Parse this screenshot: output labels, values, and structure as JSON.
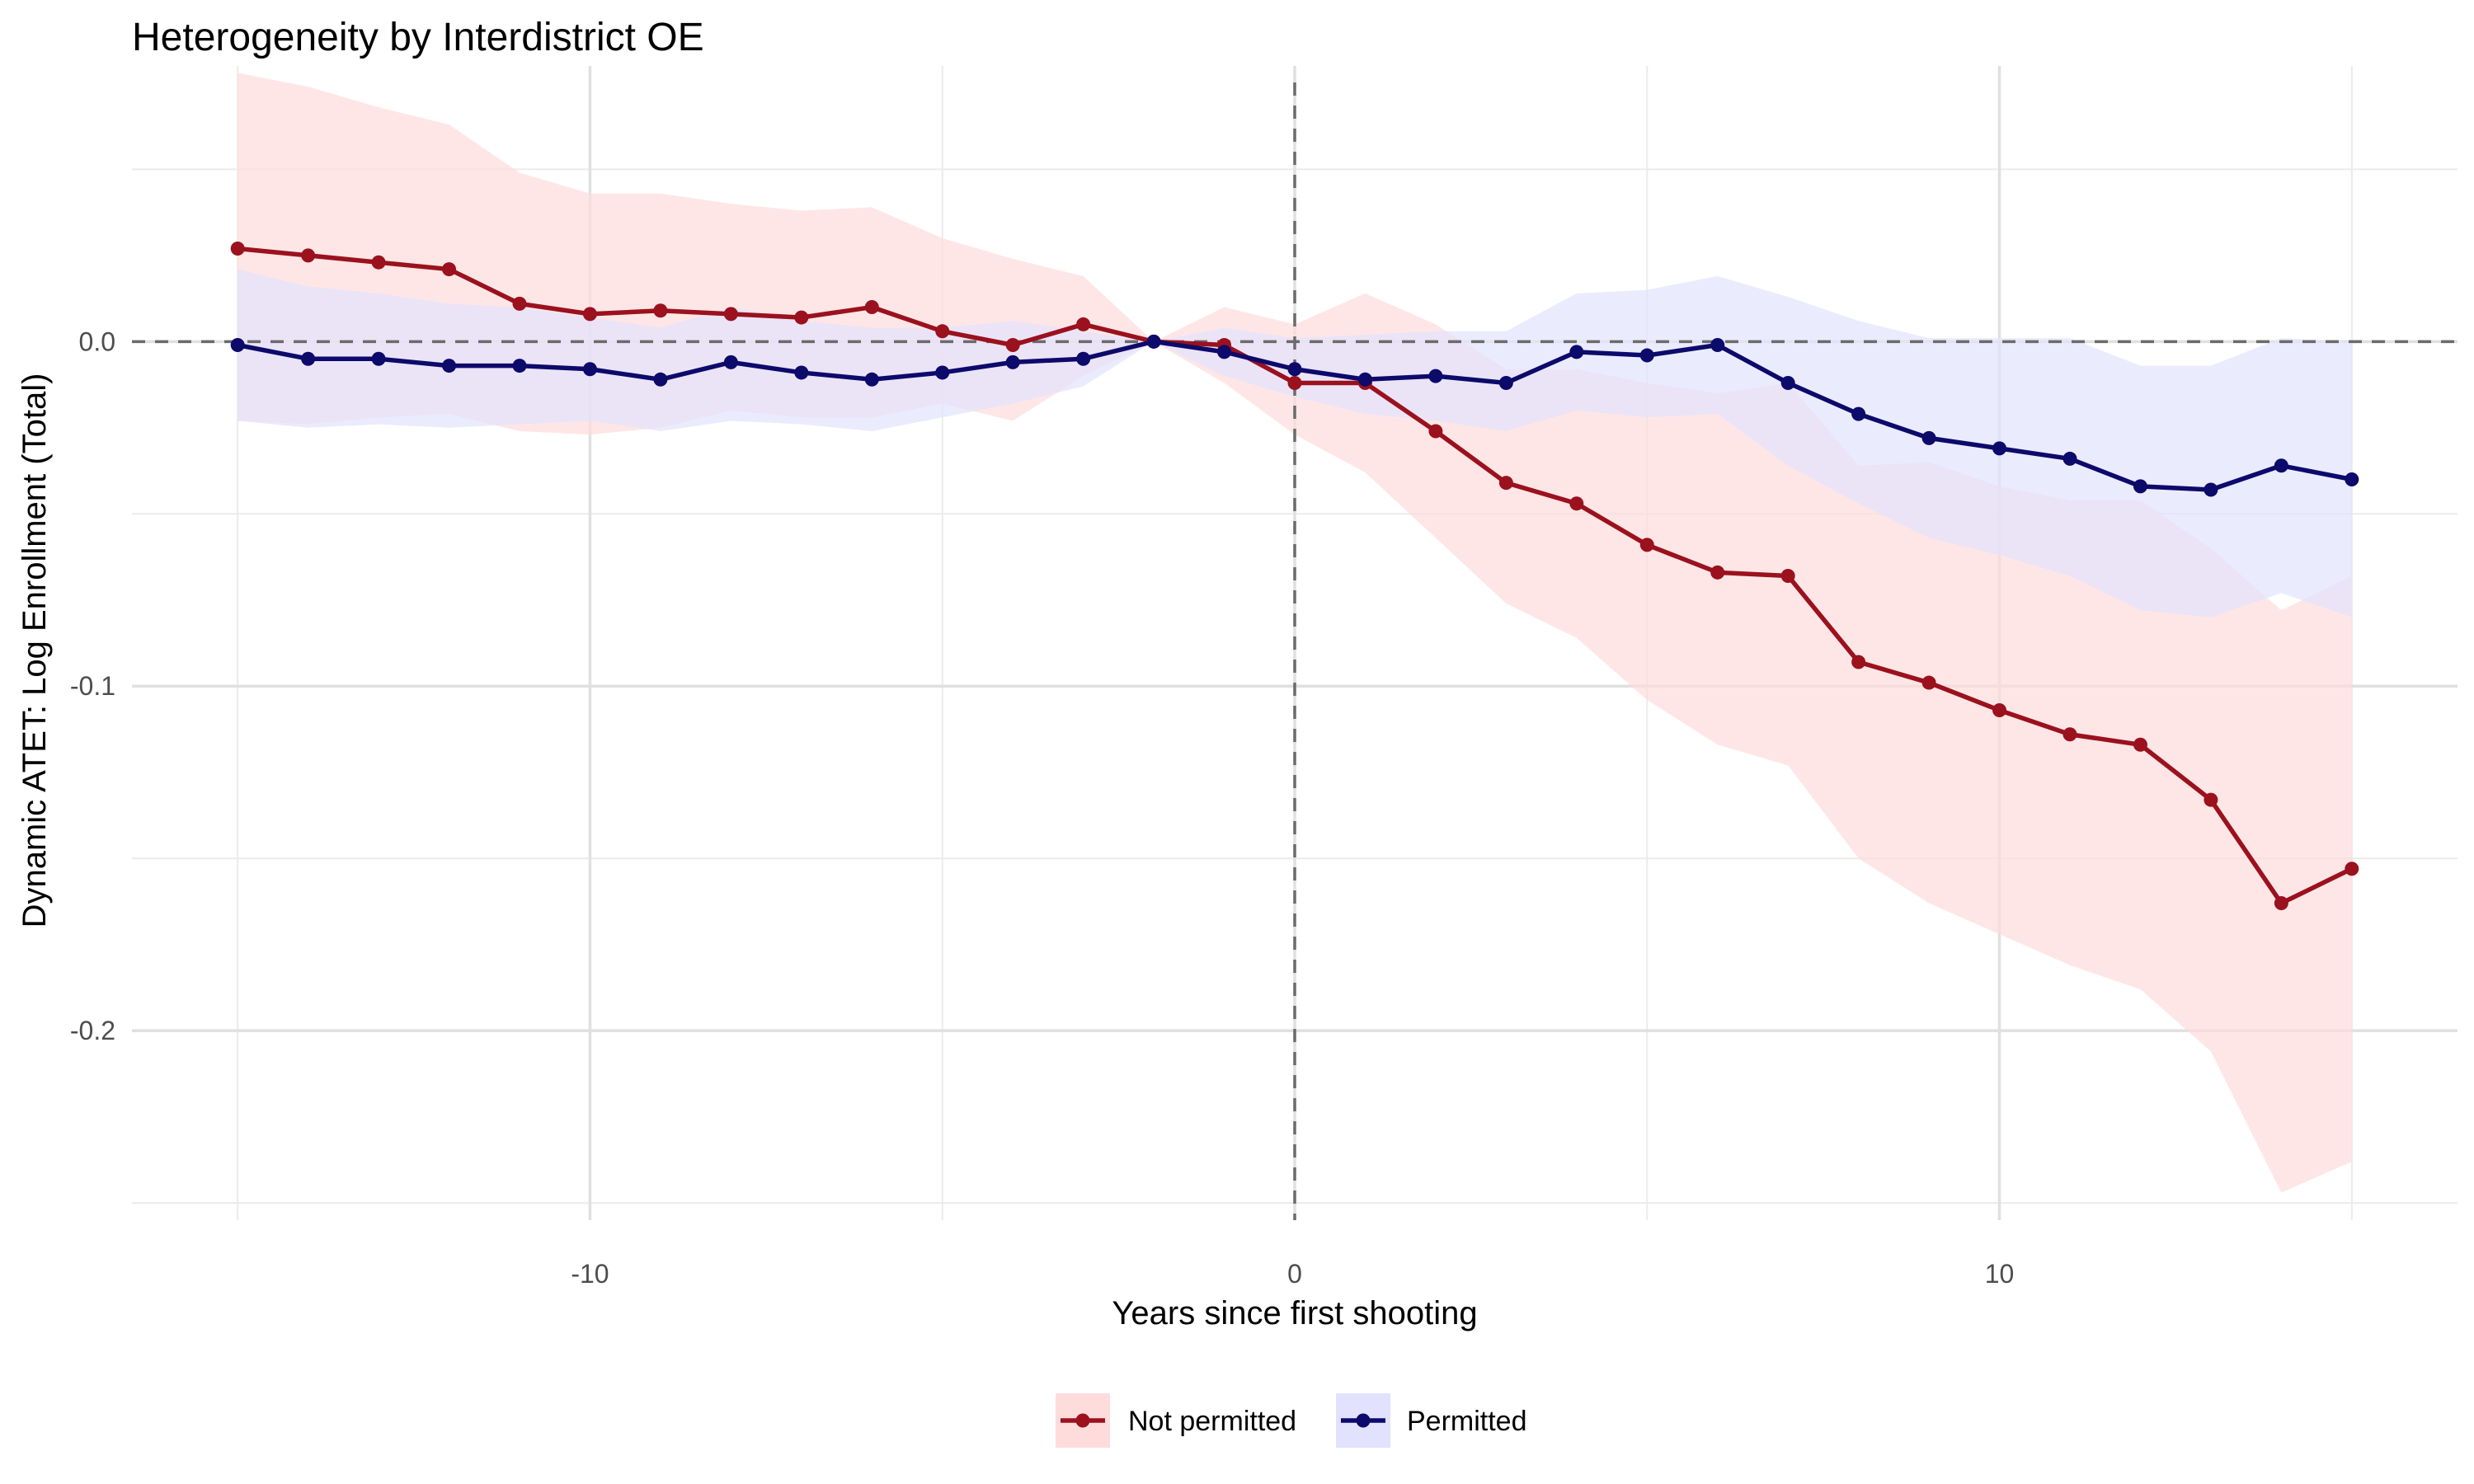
{
  "chart_data": {
    "type": "line",
    "title": "Heterogeneity by Interdistrict OE",
    "xlabel": "Years since first shooting",
    "ylabel": "Dynamic ATET: Log Enrollment (Total)",
    "xlim": [
      -16.5,
      16.5
    ],
    "ylim": [
      -0.255,
      0.08
    ],
    "x_ticks": [
      -10,
      0,
      10
    ],
    "x_tick_labels": [
      "-10",
      "0",
      "10"
    ],
    "y_ticks": [
      -0.2,
      -0.1,
      0.0
    ],
    "y_tick_labels": [
      "-0.2",
      "-0.1",
      "0.0"
    ],
    "reference_lines": {
      "x": 0,
      "y": 0
    },
    "x": [
      -15,
      -14,
      -13,
      -12,
      -11,
      -10,
      -9,
      -8,
      -7,
      -6,
      -5,
      -4,
      -3,
      -2,
      -1,
      0,
      1,
      2,
      3,
      4,
      5,
      6,
      7,
      8,
      9,
      10,
      11,
      12,
      13,
      14,
      15
    ],
    "series": [
      {
        "name": "Not permitted",
        "color": "#9b111e",
        "band_color": "#ffdcdc",
        "values": [
          0.027,
          0.025,
          0.023,
          0.021,
          0.011,
          0.008,
          0.009,
          0.008,
          0.007,
          0.01,
          0.003,
          -0.001,
          0.005,
          0.0,
          -0.001,
          -0.012,
          -0.012,
          -0.026,
          -0.041,
          -0.047,
          -0.059,
          -0.067,
          -0.068,
          -0.093,
          -0.099,
          -0.107,
          -0.114,
          -0.117,
          -0.133,
          -0.163,
          -0.153
        ],
        "lower": [
          -0.023,
          -0.024,
          -0.022,
          -0.021,
          -0.026,
          -0.027,
          -0.025,
          -0.02,
          -0.022,
          -0.022,
          -0.018,
          -0.023,
          -0.01,
          0.0,
          -0.012,
          -0.027,
          -0.038,
          -0.057,
          -0.076,
          -0.086,
          -0.104,
          -0.117,
          -0.123,
          -0.15,
          -0.163,
          -0.172,
          -0.181,
          -0.188,
          -0.206,
          -0.247,
          -0.238
        ],
        "upper": [
          0.078,
          0.074,
          0.068,
          0.063,
          0.049,
          0.043,
          0.043,
          0.04,
          0.038,
          0.039,
          0.03,
          0.024,
          0.019,
          0.0,
          0.01,
          0.005,
          0.014,
          0.005,
          -0.008,
          -0.008,
          -0.012,
          -0.015,
          -0.012,
          -0.036,
          -0.035,
          -0.042,
          -0.046,
          -0.046,
          -0.06,
          -0.078,
          -0.068
        ]
      },
      {
        "name": "Permitted",
        "color": "#0c0a6b",
        "band_color": "#e2e2fe",
        "values": [
          -0.001,
          -0.005,
          -0.005,
          -0.007,
          -0.007,
          -0.008,
          -0.011,
          -0.006,
          -0.009,
          -0.011,
          -0.009,
          -0.006,
          -0.005,
          0.0,
          -0.003,
          -0.008,
          -0.011,
          -0.01,
          -0.012,
          -0.003,
          -0.004,
          -0.001,
          -0.012,
          -0.021,
          -0.028,
          -0.031,
          -0.034,
          -0.042,
          -0.043,
          -0.036,
          -0.04
        ],
        "lower": [
          -0.023,
          -0.025,
          -0.024,
          -0.025,
          -0.024,
          -0.023,
          -0.026,
          -0.023,
          -0.024,
          -0.026,
          -0.022,
          -0.018,
          -0.013,
          0.0,
          -0.01,
          -0.016,
          -0.021,
          -0.023,
          -0.026,
          -0.02,
          -0.022,
          -0.021,
          -0.036,
          -0.047,
          -0.057,
          -0.062,
          -0.068,
          -0.078,
          -0.08,
          -0.073,
          -0.08
        ],
        "upper": [
          0.021,
          0.016,
          0.014,
          0.011,
          0.01,
          0.007,
          0.004,
          0.01,
          0.006,
          0.004,
          0.004,
          0.006,
          0.003,
          0.0,
          0.004,
          0.001,
          0.002,
          0.003,
          0.003,
          0.014,
          0.015,
          0.019,
          0.013,
          0.006,
          0.001,
          0.001,
          0.001,
          -0.007,
          -0.007,
          0.001,
          0.0
        ]
      }
    ],
    "legend": {
      "position": "bottom",
      "entries": [
        "Not permitted",
        "Permitted"
      ]
    }
  }
}
